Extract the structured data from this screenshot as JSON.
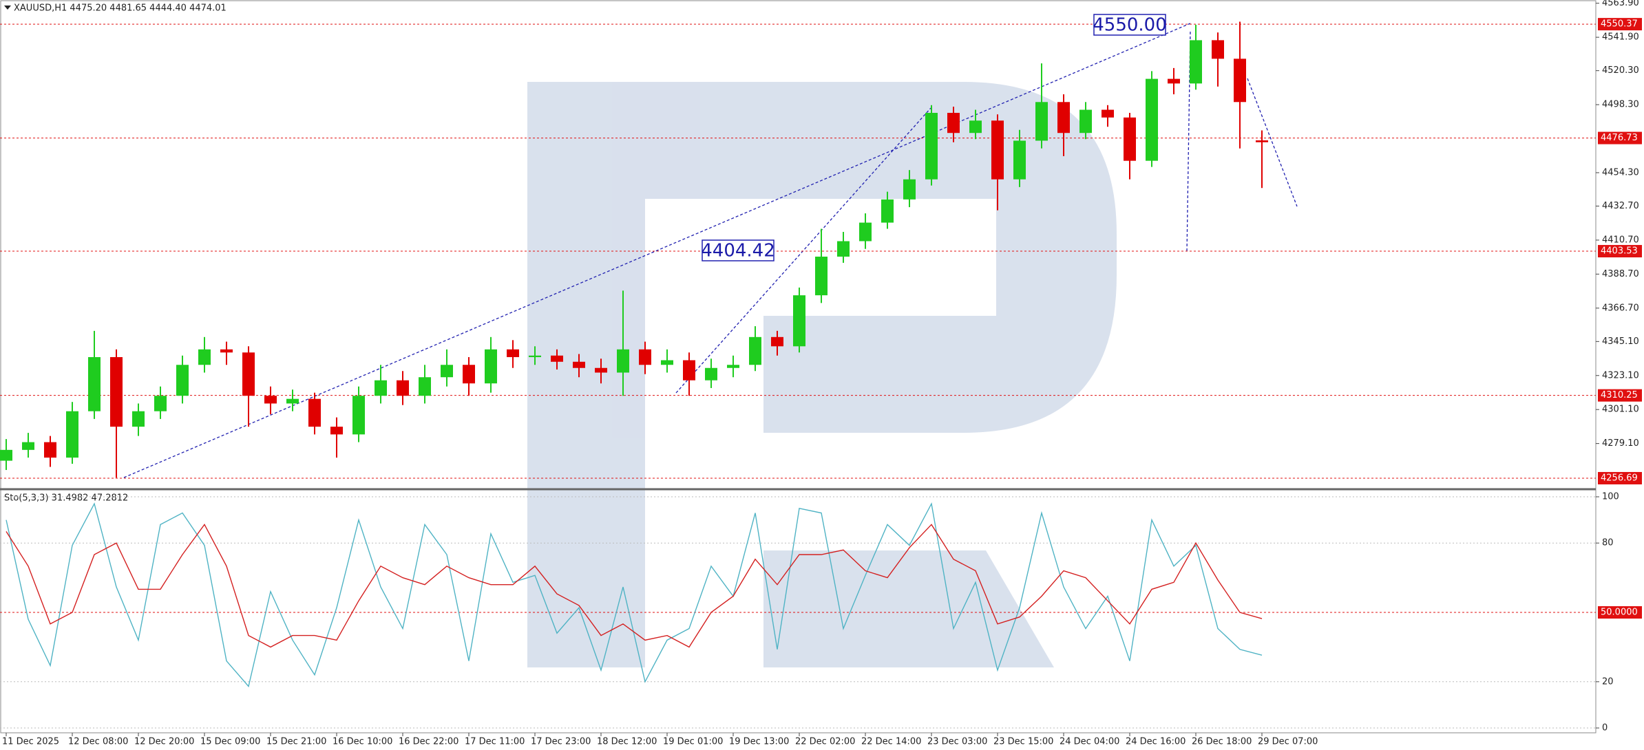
{
  "chart_data": [
    {
      "type": "candlestick",
      "title": "XAUUSD,H1  4475.20 4481.65 4444.40 4474.01",
      "up_color": "#1fcc1f",
      "down_color": "#e00000",
      "level_color": "#e01010",
      "ylim": [
        4250,
        4566
      ],
      "yticks": [
        {
          "value": 4563.9,
          "label": "4563.90"
        },
        {
          "value": 4541.9,
          "label": "4541.90"
        },
        {
          "value": 4520.3,
          "label": "4520.30"
        },
        {
          "value": 4498.3,
          "label": "4498.30"
        },
        {
          "value": 4454.3,
          "label": "4454.30"
        },
        {
          "value": 4432.7,
          "label": "4432.70"
        },
        {
          "value": 4410.7,
          "label": "4410.70"
        },
        {
          "value": 4388.7,
          "label": "4388.70"
        },
        {
          "value": 4366.7,
          "label": "4366.70"
        },
        {
          "value": 4345.1,
          "label": "4345.10"
        },
        {
          "value": 4323.1,
          "label": "4323.10"
        },
        {
          "value": 4301.1,
          "label": "4301.10"
        },
        {
          "value": 4279.1,
          "label": "4279.10"
        }
      ],
      "levels": [
        {
          "value": 4550.37,
          "label": "4550.37"
        },
        {
          "value": 4476.73,
          "label": "4476.73"
        },
        {
          "value": 4403.53,
          "label": "4403.53"
        },
        {
          "value": 4310.25,
          "label": "4310.25"
        },
        {
          "value": 4256.69,
          "label": "4256.69"
        }
      ],
      "annotations": [
        {
          "text": "4550.00"
        },
        {
          "text": "4404.42"
        }
      ],
      "categories": [
        "11 Dec 2025",
        null,
        null,
        "12 Dec 08:00",
        null,
        null,
        "12 Dec 20:00",
        null,
        null,
        "15 Dec 09:00",
        null,
        null,
        "15 Dec 21:00",
        null,
        null,
        "16 Dec 10:00",
        null,
        null,
        "16 Dec 22:00",
        null,
        null,
        "17 Dec 11:00",
        null,
        null,
        "17 Dec 23:00",
        null,
        null,
        "18 Dec 12:00",
        null,
        null,
        "19 Dec 01:00",
        null,
        null,
        "19 Dec 13:00",
        null,
        null,
        "22 Dec 02:00",
        null,
        null,
        "22 Dec 14:00",
        null,
        null,
        "23 Dec 03:00",
        null,
        null,
        "23 Dec 15:00",
        null,
        null,
        "24 Dec 04:00",
        null,
        null,
        "24 Dec 16:00",
        null,
        null,
        "26 Dec 18:00",
        null,
        null,
        "29 Dec 07:00"
      ],
      "open": [
        4268,
        4275,
        4280,
        4270,
        4300,
        4335,
        4290,
        4300,
        4310,
        4330,
        4340,
        4338,
        4310,
        4305,
        4308,
        4290,
        4285,
        4310,
        4320,
        4310,
        4322,
        4330,
        4318,
        4340,
        4335,
        4336,
        4332,
        4328,
        4325,
        4340,
        4330,
        4333,
        4320,
        4328,
        4330,
        4348,
        4342,
        4375,
        4400,
        4410,
        4422,
        4437,
        4450,
        4493,
        4480,
        4488,
        4450,
        4475,
        4500,
        4480,
        4495,
        4490,
        4462,
        4515,
        4512,
        4540,
        4528,
        4475.2
      ],
      "high": [
        4282,
        4286,
        4284,
        4306,
        4352,
        4340,
        4305,
        4316,
        4336,
        4348,
        4345,
        4342,
        4316,
        4314,
        4312,
        4296,
        4316,
        4330,
        4326,
        4330,
        4340,
        4335,
        4348,
        4346,
        4342,
        4340,
        4337,
        4334,
        4378,
        4345,
        4340,
        4338,
        4334,
        4336,
        4355,
        4352,
        4380,
        4418,
        4416,
        4428,
        4442,
        4456,
        4498,
        4497,
        4495,
        4492,
        4482,
        4525,
        4505,
        4500,
        4498,
        4493,
        4520,
        4522,
        4550,
        4545,
        4552,
        4481.65
      ],
      "low": [
        4262,
        4270,
        4264,
        4266,
        4295,
        4257,
        4284,
        4295,
        4305,
        4325,
        4330,
        4290,
        4298,
        4300,
        4285,
        4270,
        4280,
        4305,
        4304,
        4305,
        4316,
        4310,
        4312,
        4328,
        4330,
        4327,
        4322,
        4318,
        4310,
        4324,
        4325,
        4310,
        4315,
        4322,
        4326,
        4336,
        4338,
        4370,
        4396,
        4405,
        4418,
        4432,
        4446,
        4474,
        4476,
        4430,
        4445,
        4470,
        4465,
        4476,
        4484,
        4450,
        4458,
        4505,
        4508,
        4510,
        4470,
        4444.4
      ],
      "close": [
        4275,
        4280,
        4270,
        4300,
        4335,
        4290,
        4300,
        4310,
        4330,
        4340,
        4338,
        4310,
        4305,
        4308,
        4290,
        4285,
        4310,
        4320,
        4310,
        4322,
        4330,
        4318,
        4340,
        4335,
        4336,
        4332,
        4328,
        4325,
        4340,
        4330,
        4333,
        4320,
        4328,
        4330,
        4348,
        4342,
        4375,
        4400,
        4410,
        4422,
        4437,
        4450,
        4493,
        4480,
        4488,
        4450,
        4475,
        4500,
        4480,
        4495,
        4490,
        4462,
        4515,
        4512,
        4540,
        4528,
        4500,
        4474.01
      ]
    },
    {
      "type": "line",
      "title": "Sto(5,3,3) 31.4982 47.2812",
      "ylim": [
        0,
        100
      ],
      "yticks": [
        0,
        20,
        80,
        100
      ],
      "grid": true,
      "levels": [
        {
          "value": 50,
          "label": "50.0000"
        }
      ],
      "level_color": "#e01010",
      "series": [
        {
          "color": "#4fb3c4",
          "values": [
            90,
            47,
            27,
            79,
            97,
            61,
            38,
            88,
            93,
            79,
            29,
            18,
            59,
            38,
            23,
            52,
            90,
            61,
            43,
            88,
            75,
            29,
            84,
            63,
            66,
            41,
            52,
            25,
            61,
            20,
            38,
            43,
            70,
            57,
            93,
            34,
            95,
            93,
            43,
            66,
            88,
            79,
            97,
            43,
            63,
            25,
            52,
            93,
            61,
            43,
            57,
            29,
            90,
            70,
            79,
            43,
            34,
            31.5
          ]
        },
        {
          "color": "#d42020",
          "values": [
            85,
            70,
            45,
            50,
            75,
            80,
            60,
            60,
            75,
            88,
            70,
            40,
            35,
            40,
            40,
            38,
            55,
            70,
            65,
            62,
            70,
            65,
            62,
            62,
            70,
            58,
            53,
            40,
            45,
            38,
            40,
            35,
            50,
            57,
            73,
            62,
            75,
            75,
            77,
            68,
            65,
            78,
            88,
            73,
            68,
            45,
            48,
            57,
            68,
            65,
            55,
            45,
            60,
            63,
            80,
            64,
            50,
            47.3
          ]
        }
      ]
    }
  ]
}
